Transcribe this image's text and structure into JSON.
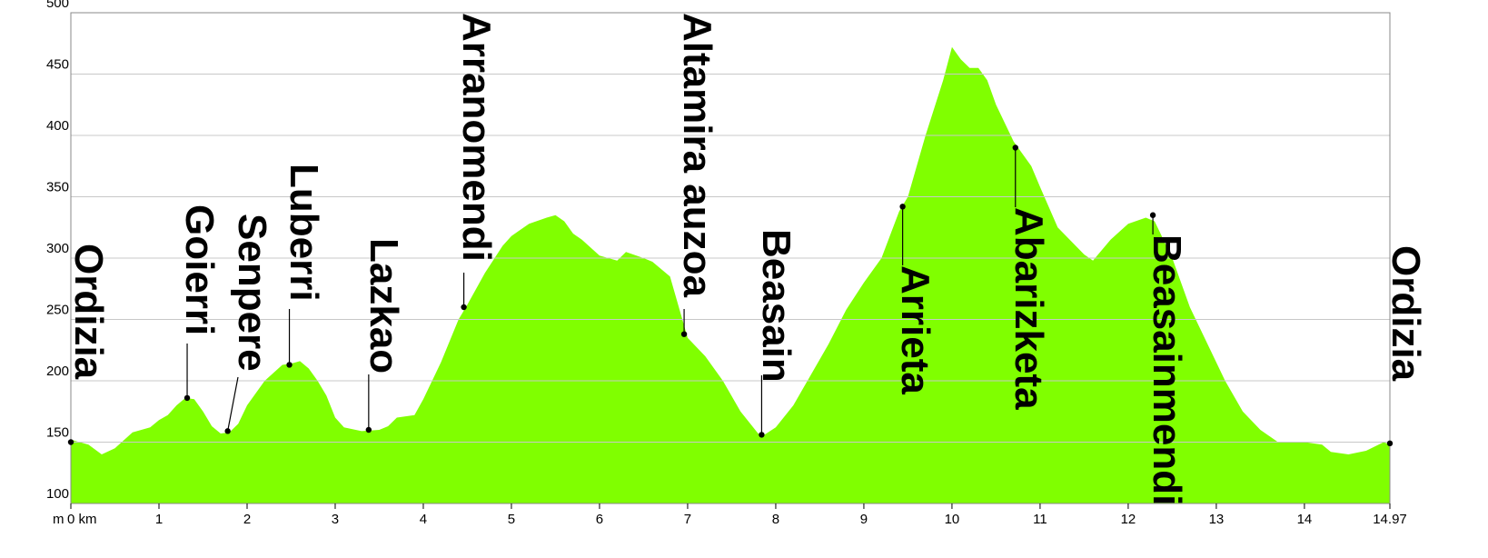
{
  "chart_data": {
    "type": "area",
    "ylabel": "m",
    "color": "#80ff00",
    "x": [
      0,
      0.2,
      0.35,
      0.5,
      0.7,
      0.9,
      1.0,
      1.1,
      1.2,
      1.3,
      1.4,
      1.5,
      1.6,
      1.7,
      1.8,
      1.9,
      2.0,
      2.2,
      2.4,
      2.5,
      2.6,
      2.7,
      2.8,
      2.9,
      3.0,
      3.1,
      3.3,
      3.5,
      3.6,
      3.7,
      3.9,
      4.0,
      4.2,
      4.4,
      4.5,
      4.7,
      4.9,
      5.0,
      5.2,
      5.4,
      5.5,
      5.6,
      5.7,
      5.8,
      6.0,
      6.2,
      6.3,
      6.5,
      6.6,
      6.8,
      6.9,
      7.0,
      7.2,
      7.4,
      7.6,
      7.8,
      7.85,
      8.0,
      8.2,
      8.4,
      8.6,
      8.8,
      9.0,
      9.2,
      9.4,
      9.5,
      9.7,
      9.9,
      10.0,
      10.1,
      10.2,
      10.3,
      10.4,
      10.5,
      10.7,
      10.9,
      11.0,
      11.2,
      11.5,
      11.6,
      11.8,
      12.0,
      12.2,
      12.3,
      12.5,
      12.7,
      12.9,
      13.1,
      13.3,
      13.5,
      13.7,
      14.0,
      14.2,
      14.3,
      14.5,
      14.7,
      14.9,
      14.97
    ],
    "values": [
      152,
      148,
      140,
      145,
      158,
      162,
      168,
      172,
      180,
      186,
      185,
      175,
      163,
      157,
      158,
      165,
      180,
      200,
      213,
      214,
      216,
      210,
      200,
      188,
      170,
      162,
      159,
      160,
      163,
      170,
      172,
      185,
      215,
      250,
      262,
      288,
      310,
      318,
      328,
      333,
      335,
      330,
      320,
      315,
      302,
      298,
      305,
      300,
      297,
      285,
      260,
      235,
      220,
      200,
      175,
      157,
      155,
      162,
      180,
      205,
      230,
      258,
      280,
      300,
      338,
      350,
      400,
      445,
      472,
      462,
      455,
      455,
      445,
      425,
      395,
      375,
      358,
      325,
      303,
      298,
      315,
      328,
      333,
      330,
      300,
      260,
      230,
      200,
      175,
      160,
      150,
      150,
      148,
      142,
      140,
      143,
      150,
      148
    ],
    "waypoints": [
      {
        "name": "Ordizia",
        "x": 0,
        "y": 150
      },
      {
        "name": "Goierri",
        "x": 1.32,
        "y": 186
      },
      {
        "name": "Senpere",
        "x": 1.78,
        "y": 159
      },
      {
        "name": "Luberri",
        "x": 2.48,
        "y": 213
      },
      {
        "name": "Lazkao",
        "x": 3.38,
        "y": 160
      },
      {
        "name": "Arranomendi",
        "x": 4.46,
        "y": 260
      },
      {
        "name": "Altamira auzoa",
        "x": 6.96,
        "y": 238
      },
      {
        "name": "Beasain",
        "x": 7.84,
        "y": 156
      },
      {
        "name": "Arrieta",
        "x": 9.44,
        "y": 342
      },
      {
        "name": "Abarizketa",
        "x": 10.72,
        "y": 390
      },
      {
        "name": "Beasainmendi",
        "x": 12.28,
        "y": 335
      },
      {
        "name": "Ordizia",
        "x": 14.97,
        "y": 149
      }
    ],
    "xlim": [
      0,
      14.97
    ],
    "ylim": [
      100,
      500
    ],
    "xticks": [
      {
        "value": 0,
        "label": "0 km"
      },
      1,
      2,
      3,
      4,
      5,
      6,
      7,
      8,
      9,
      10,
      11,
      12,
      13,
      14,
      14.97
    ],
    "yticks": [
      100,
      150,
      200,
      250,
      300,
      350,
      400,
      450,
      500
    ],
    "grid": true
  }
}
